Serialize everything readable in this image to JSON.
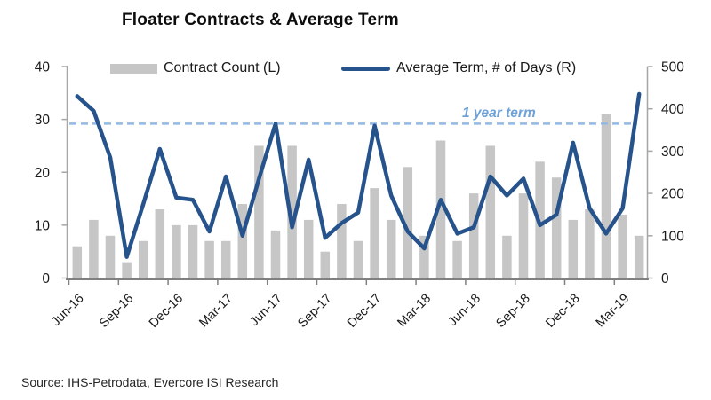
{
  "title": "Floater Contracts & Average Term",
  "source": "Source: IHS-Petrodata, Evercore ISI Research",
  "legend": {
    "bar_label": "Contract Count (L)",
    "line_label": "Average Term, # of Days (R)"
  },
  "reference_line": {
    "label": "1 year term",
    "value_days": 365
  },
  "colors": {
    "bar": "#c6c6c6",
    "line": "#26538c",
    "dashed": "#92b9e4",
    "refline_label": "#6fa1d9",
    "axis": "#a6a6a6",
    "bottom_axis": "#808080",
    "tick_text": "#1a1a1a"
  },
  "chart_data": {
    "type": "bar+line",
    "title": "Floater Contracts & Average Term",
    "grid": false,
    "legend_position": "top",
    "categories": [
      "Jun-16",
      "Jul-16",
      "Aug-16",
      "Sep-16",
      "Oct-16",
      "Nov-16",
      "Dec-16",
      "Jan-17",
      "Feb-17",
      "Mar-17",
      "Apr-17",
      "May-17",
      "Jun-17",
      "Jul-17",
      "Aug-17",
      "Sep-17",
      "Oct-17",
      "Nov-17",
      "Dec-17",
      "Jan-18",
      "Feb-18",
      "Mar-18",
      "Apr-18",
      "May-18",
      "Jun-18",
      "Jul-18",
      "Aug-18",
      "Sep-18",
      "Oct-18",
      "Nov-18",
      "Dec-18",
      "Jan-19",
      "Feb-19",
      "Mar-19",
      "Apr-19"
    ],
    "x_tick_labels": [
      "Jun-16",
      "Sep-16",
      "Dec-16",
      "Mar-17",
      "Jun-17",
      "Sep-17",
      "Dec-17",
      "Mar-18",
      "Jun-18",
      "Sep-18",
      "Dec-18",
      "Mar-19"
    ],
    "series": [
      {
        "name": "Contract Count (L)",
        "type": "bar",
        "axis": "left",
        "values": [
          6,
          11,
          8,
          3,
          7,
          13,
          10,
          10,
          7,
          7,
          14,
          25,
          9,
          25,
          11,
          5,
          14,
          7,
          17,
          11,
          21,
          8,
          26,
          7,
          16,
          25,
          8,
          16,
          22,
          19,
          11,
          13,
          31,
          12,
          8
        ]
      },
      {
        "name": "Average Term, # of Days (R)",
        "type": "line",
        "axis": "right",
        "values": [
          430,
          395,
          285,
          50,
          175,
          305,
          190,
          185,
          110,
          240,
          100,
          235,
          365,
          120,
          280,
          95,
          130,
          155,
          360,
          195,
          110,
          70,
          185,
          105,
          120,
          240,
          195,
          235,
          125,
          150,
          320,
          165,
          105,
          165,
          435
        ]
      }
    ],
    "left_axis": {
      "range": [
        0,
        40
      ],
      "ticks": [
        0,
        10,
        20,
        30,
        40
      ]
    },
    "right_axis": {
      "range": [
        0,
        500
      ],
      "ticks": [
        0,
        100,
        200,
        300,
        400,
        500
      ]
    },
    "annotations": [
      {
        "text": "1 year term",
        "y_right": 365,
        "style": "dashed-line"
      }
    ]
  }
}
